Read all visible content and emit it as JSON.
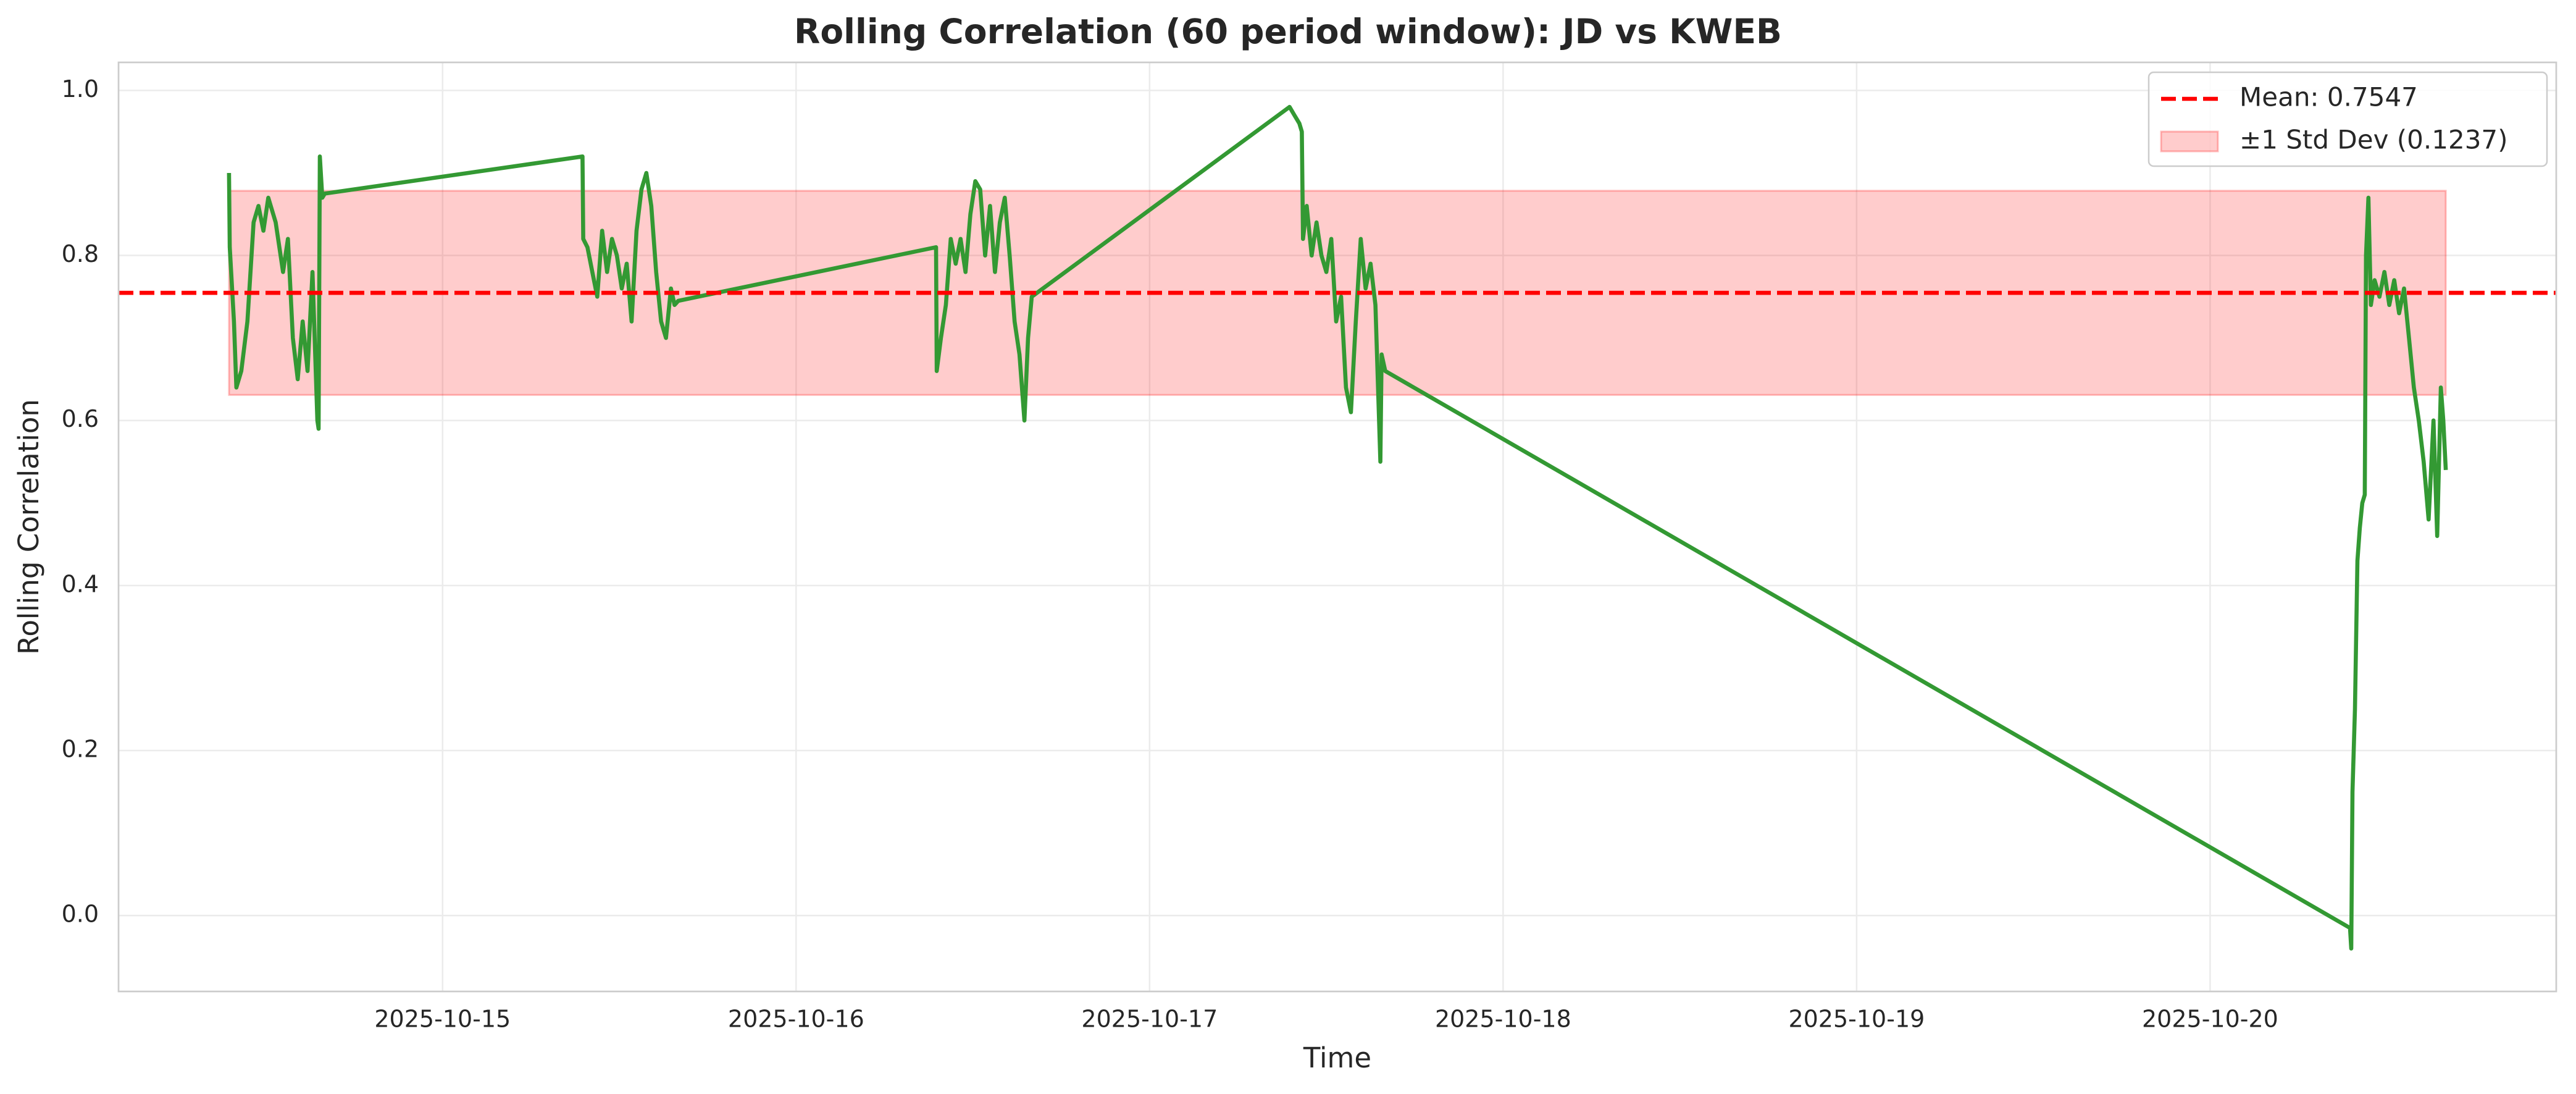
{
  "chart_data": {
    "type": "line",
    "title": "Rolling Correlation (60 period window): JD vs KWEB",
    "xlabel": "Time",
    "ylabel": "Rolling Correlation",
    "grid": true,
    "legend": "upper right",
    "color": "#339933",
    "xlim": [
      "2025-10-14 02:00",
      "2025-10-20 23:30"
    ],
    "xticks": [
      "2025-10-15",
      "2025-10-16",
      "2025-10-17",
      "2025-10-18",
      "2025-10-19",
      "2025-10-20"
    ],
    "ylim": [
      -0.092,
      1.034
    ],
    "yticks": [
      {
        "value": 0,
        "label": "0.0"
      },
      0.2,
      0.4,
      0.6,
      0.8,
      {
        "value": 1,
        "label": "1.0"
      }
    ],
    "mean": {
      "label": "Mean: 0.7547",
      "value": 0.7547,
      "color": "red"
    },
    "band": {
      "label": "±1 Std Dev (0.1237)",
      "std": 0.1237,
      "color": "red"
    },
    "x": [
      "2025-10-14 09:30",
      "2025-10-14 09:33",
      "2025-10-14 09:50",
      "2025-10-14 10:00",
      "2025-10-14 10:20",
      "2025-10-14 10:45",
      "2025-10-14 11:10",
      "2025-10-14 11:30",
      "2025-10-14 11:50",
      "2025-10-14 12:10",
      "2025-10-14 12:40",
      "2025-10-14 13:10",
      "2025-10-14 13:30",
      "2025-10-14 13:50",
      "2025-10-14 14:10",
      "2025-10-14 14:30",
      "2025-10-14 14:50",
      "2025-10-14 15:10",
      "2025-10-14 15:30",
      "2025-10-14 15:35",
      "2025-10-14 15:40",
      "2025-10-14 15:50",
      "2025-10-14 16:00",
      "2025-10-15 09:30",
      "2025-10-15 09:33",
      "2025-10-15 09:50",
      "2025-10-15 10:10",
      "2025-10-15 10:30",
      "2025-10-15 10:50",
      "2025-10-15 11:10",
      "2025-10-15 11:30",
      "2025-10-15 11:50",
      "2025-10-15 12:10",
      "2025-10-15 12:30",
      "2025-10-15 12:50",
      "2025-10-15 13:10",
      "2025-10-15 13:30",
      "2025-10-15 13:50",
      "2025-10-15 14:10",
      "2025-10-15 14:30",
      "2025-10-15 14:50",
      "2025-10-15 15:10",
      "2025-10-15 15:30",
      "2025-10-15 15:45",
      "2025-10-15 16:00",
      "2025-10-16 09:30",
      "2025-10-16 09:33",
      "2025-10-16 09:50",
      "2025-10-16 10:10",
      "2025-10-16 10:30",
      "2025-10-16 10:50",
      "2025-10-16 11:10",
      "2025-10-16 11:30",
      "2025-10-16 11:50",
      "2025-10-16 12:10",
      "2025-10-16 12:30",
      "2025-10-16 12:50",
      "2025-10-16 13:10",
      "2025-10-16 13:30",
      "2025-10-16 13:50",
      "2025-10-16 14:10",
      "2025-10-16 14:30",
      "2025-10-16 14:50",
      "2025-10-16 15:10",
      "2025-10-16 15:30",
      "2025-10-16 15:45",
      "2025-10-16 16:00",
      "2025-10-17 09:30",
      "2025-10-17 09:50",
      "2025-10-17 10:10",
      "2025-10-17 10:20",
      "2025-10-17 10:25",
      "2025-10-17 10:40",
      "2025-10-17 11:00",
      "2025-10-17 11:20",
      "2025-10-17 11:40",
      "2025-10-17 12:00",
      "2025-10-17 12:20",
      "2025-10-17 12:40",
      "2025-10-17 13:00",
      "2025-10-17 13:20",
      "2025-10-17 13:40",
      "2025-10-17 14:00",
      "2025-10-17 14:20",
      "2025-10-17 14:40",
      "2025-10-17 15:00",
      "2025-10-17 15:20",
      "2025-10-17 15:40",
      "2025-10-17 15:45",
      "2025-10-17 16:00",
      "2025-10-20 09:30",
      "2025-10-20 09:35",
      "2025-10-20 09:40",
      "2025-10-20 09:50",
      "2025-10-20 10:00",
      "2025-10-20 10:10",
      "2025-10-20 10:20",
      "2025-10-20 10:30",
      "2025-10-20 10:35",
      "2025-10-20 10:45",
      "2025-10-20 10:55",
      "2025-10-20 11:10",
      "2025-10-20 11:30",
      "2025-10-20 11:50",
      "2025-10-20 12:10",
      "2025-10-20 12:30",
      "2025-10-20 12:50",
      "2025-10-20 13:10",
      "2025-10-20 13:30",
      "2025-10-20 13:50",
      "2025-10-20 14:10",
      "2025-10-20 14:30",
      "2025-10-20 14:50",
      "2025-10-20 15:10",
      "2025-10-20 15:25",
      "2025-10-20 15:40",
      "2025-10-20 15:50",
      "2025-10-20 16:00"
    ],
    "values": [
      0.9,
      0.81,
      0.72,
      0.64,
      0.66,
      0.72,
      0.84,
      0.86,
      0.83,
      0.87,
      0.84,
      0.78,
      0.82,
      0.7,
      0.65,
      0.72,
      0.66,
      0.78,
      0.6,
      0.59,
      0.92,
      0.87,
      0.875,
      0.92,
      0.82,
      0.81,
      0.78,
      0.75,
      0.83,
      0.78,
      0.82,
      0.8,
      0.76,
      0.79,
      0.72,
      0.83,
      0.88,
      0.9,
      0.86,
      0.78,
      0.72,
      0.7,
      0.76,
      0.74,
      0.745,
      0.81,
      0.66,
      0.7,
      0.74,
      0.82,
      0.79,
      0.82,
      0.78,
      0.85,
      0.89,
      0.88,
      0.8,
      0.86,
      0.78,
      0.84,
      0.87,
      0.8,
      0.72,
      0.68,
      0.6,
      0.7,
      0.75,
      0.98,
      0.97,
      0.96,
      0.95,
      0.82,
      0.86,
      0.8,
      0.84,
      0.8,
      0.78,
      0.82,
      0.72,
      0.75,
      0.64,
      0.61,
      0.72,
      0.82,
      0.76,
      0.79,
      0.74,
      0.55,
      0.68,
      0.66,
      -0.015,
      -0.04,
      0.15,
      0.25,
      0.43,
      0.47,
      0.5,
      0.51,
      0.8,
      0.87,
      0.74,
      0.77,
      0.75,
      0.78,
      0.74,
      0.77,
      0.73,
      0.76,
      0.7,
      0.64,
      0.6,
      0.55,
      0.48,
      0.6,
      0.46,
      0.64,
      0.6,
      0.54
    ]
  }
}
